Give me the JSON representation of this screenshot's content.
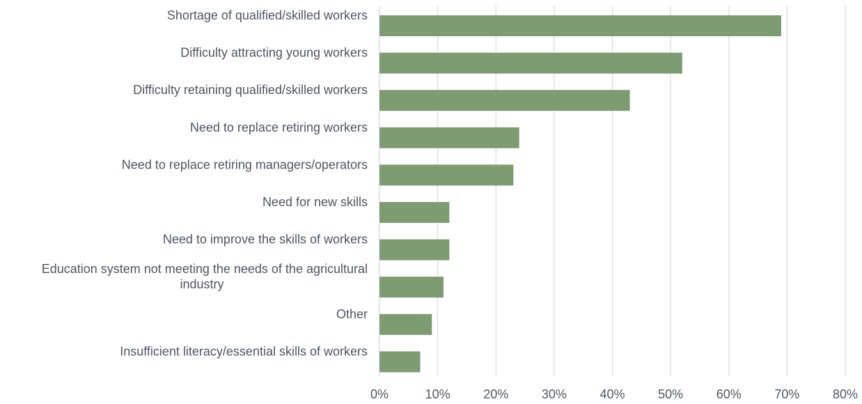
{
  "chart_data": {
    "type": "bar",
    "orientation": "horizontal",
    "categories": [
      "Shortage of qualified/skilled workers",
      "Difficulty attracting young workers",
      "Difficulty retaining qualified/skilled workers",
      "Need to replace retiring workers",
      "Need to replace retiring managers/operators",
      "Need for new skills",
      "Need to improve the skills of workers",
      "Education system not meeting the needs of the agricultural industry",
      "Other",
      "Insufficient literacy/essential skills of workers"
    ],
    "category_lines": [
      [
        "Shortage of qualified/skilled workers"
      ],
      [
        "Difficulty attracting young workers"
      ],
      [
        "Difficulty retaining qualified/skilled workers"
      ],
      [
        "Need to replace retiring workers"
      ],
      [
        "Need to replace retiring managers/operators"
      ],
      [
        "Need for new skills"
      ],
      [
        "Need to improve the skills of workers"
      ],
      [
        "Education system not meeting the needs of the agricultural",
        "industry"
      ],
      [
        "Other"
      ],
      [
        "Insufficient literacy/essential skills of workers"
      ]
    ],
    "values": [
      69,
      52,
      43,
      24,
      23,
      12,
      12,
      11,
      9,
      7
    ],
    "xlim": [
      0,
      80
    ],
    "x_ticks": [
      0,
      10,
      20,
      30,
      40,
      50,
      60,
      70,
      80
    ],
    "x_tick_labels": [
      "0%",
      "10%",
      "20%",
      "30%",
      "40%",
      "50%",
      "60%",
      "70%",
      "80%"
    ],
    "grid": true,
    "title": "",
    "xlabel": "",
    "ylabel": "",
    "colors": {
      "bar": "#7d9c71",
      "grid": "#d9d9d9",
      "text": "#4f5563"
    }
  }
}
